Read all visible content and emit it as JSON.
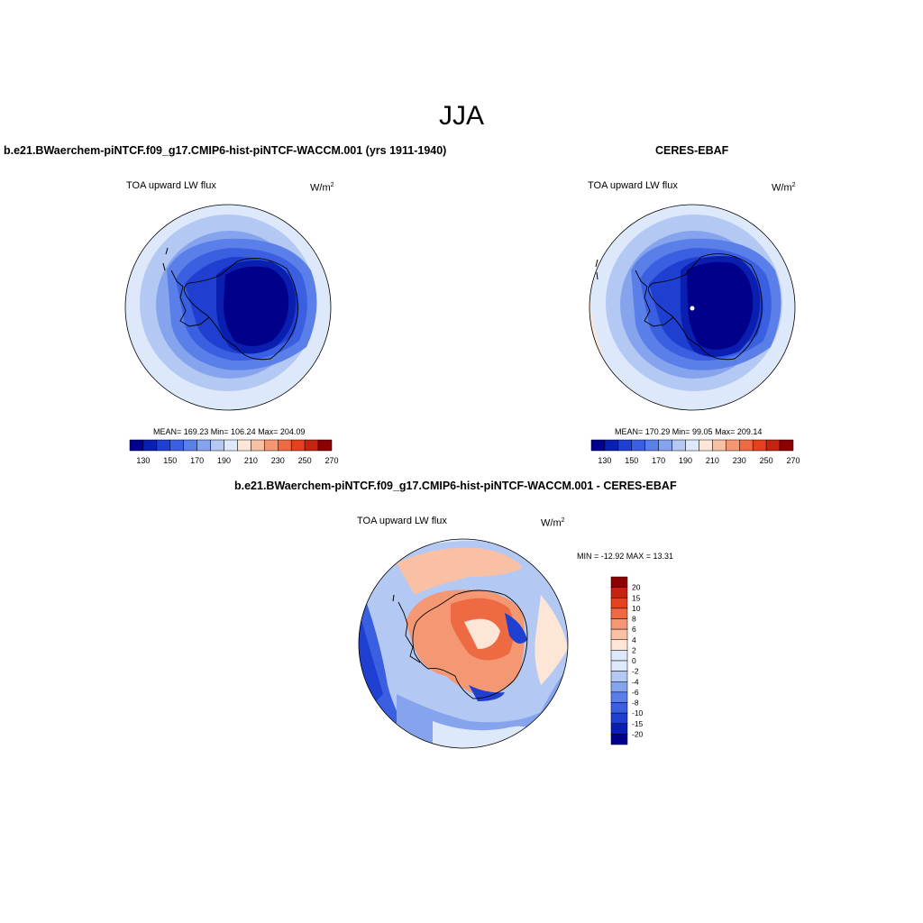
{
  "main_title": "JJA",
  "panels": [
    {
      "title": "b.e21.BWaerchem-piNTCF.f09_g17.CMIP6-hist-piNTCF-WACCM.001 (yrs 1911-1940)",
      "variable": "TOA upward LW flux",
      "units_base": "W/m",
      "units_exp": "2",
      "stats": "MEAN= 169.23  Min= 106.24  Max= 204.09"
    },
    {
      "title": "CERES-EBAF",
      "variable": "TOA upward LW flux",
      "units_base": "W/m",
      "units_exp": "2",
      "stats": "MEAN= 170.29  Min=  99.05  Max= 209.14"
    },
    {
      "title": "b.e21.BWaerchem-piNTCF.f09_g17.CMIP6-hist-piNTCF-WACCM.001 - CERES-EBAF",
      "variable": "TOA upward LW flux",
      "units_base": "W/m",
      "units_exp": "2",
      "stats": "MIN = -12.92 MAX =  13.31"
    }
  ],
  "colorbar_abs": {
    "colors": [
      "#00008b",
      "#0a1fb0",
      "#1e3fd0",
      "#3a5fe0",
      "#5a7fe8",
      "#86a4ee",
      "#b4c8f4",
      "#dde8fa",
      "#fde6d6",
      "#f9c0a4",
      "#f49874",
      "#ee6a42",
      "#e4411e",
      "#c52411",
      "#8b0000"
    ],
    "tick_labels": [
      "130",
      "150",
      "170",
      "190",
      "210",
      "230",
      "250",
      "270"
    ]
  },
  "colorbar_diff": {
    "colors": [
      "#00008b",
      "#0a1fb0",
      "#1e3fd0",
      "#3a5fe0",
      "#5a7fe8",
      "#86a4ee",
      "#b4c8f4",
      "#dde8fa",
      "#fde6d6",
      "#f9c0a4",
      "#f49874",
      "#ee6a42",
      "#e4411e",
      "#c52411",
      "#8b0000"
    ],
    "tick_labels": [
      "-20",
      "-15",
      "-10",
      "-8",
      "-6",
      "-4",
      "-2",
      "0",
      "2",
      "4",
      "6",
      "8",
      "10",
      "15",
      "20"
    ]
  }
}
